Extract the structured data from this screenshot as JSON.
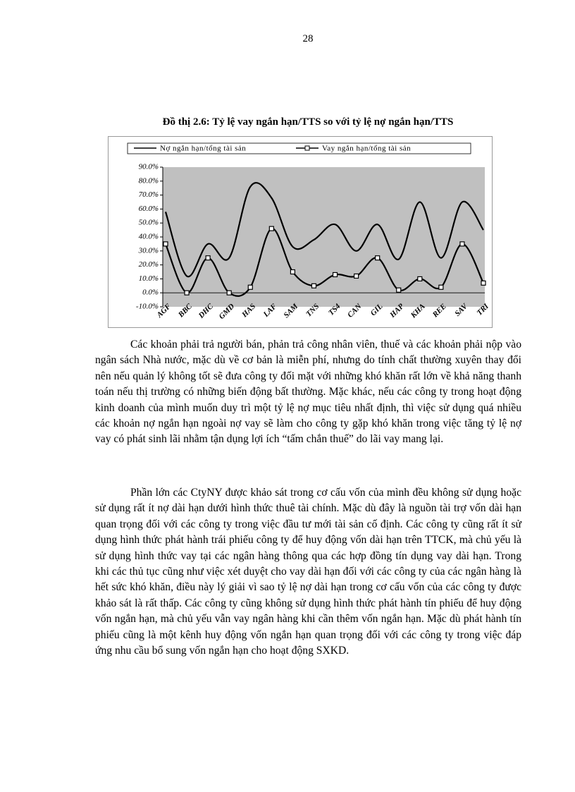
{
  "page_number": "28",
  "chart_data": {
    "type": "line",
    "title": "Đồ thị 2.6: Tỷ lệ vay ngắn hạn/TTS so với tỷ lệ nợ ngắn hạn/TTS",
    "categories": [
      "AGF",
      "BBC",
      "DHC",
      "GMD",
      "HAS",
      "LAF",
      "SAM",
      "TNS",
      "TS4",
      "CAN",
      "GIL",
      "HAP",
      "KHA",
      "REE",
      "SAV",
      "TRI"
    ],
    "series": [
      {
        "name": "Nợ ngắn hạn/tổng tài sản",
        "color": "#000000",
        "marker": false,
        "values": [
          58,
          12,
          35,
          25,
          76,
          68,
          33,
          38,
          49,
          30,
          49,
          24,
          65,
          25,
          65,
          45
        ]
      },
      {
        "name": "Vay ngắn hạn/tổng tài sản",
        "color": "#000000",
        "marker": true,
        "values": [
          35,
          0,
          25,
          0,
          4,
          46,
          15,
          5,
          13,
          12,
          25,
          2,
          10,
          4,
          35,
          7
        ]
      }
    ],
    "ylim": [
      -10,
      90
    ],
    "yticks": [
      {
        "value": -10,
        "label": "-10.0%"
      },
      {
        "value": 0,
        "label": "0.0%"
      },
      {
        "value": 10,
        "label": "10.0%"
      },
      {
        "value": 20,
        "label": "20.0%"
      },
      {
        "value": 30,
        "label": "30.0%"
      },
      {
        "value": 40,
        "label": "40.0%"
      },
      {
        "value": 50,
        "label": "50.0%"
      },
      {
        "value": 60,
        "label": "60.0%"
      },
      {
        "value": 70,
        "label": "70.0%"
      },
      {
        "value": 80,
        "label": "80.0%"
      },
      {
        "value": 90,
        "label": "90.0%"
      }
    ],
    "legend": "top",
    "background": "#c0c0c0"
  },
  "paragraphs": [
    "Các khoản phải trả người bán, phản trả công nhân viên, thuế và các khoản phải nộp vào ngân sách Nhà nước, mặc dù về cơ bản là miễn phí, nhưng do tính chất thường xuyên thay đổi nên nếu quản lý không tốt sẽ đưa công ty đối mặt với những khó khăn rất lớn về khả năng thanh toán nếu thị trường có những biến động bất thường. Mặc khác, nếu các công ty trong hoạt động kinh doanh của mình muốn duy trì một tỷ lệ nợ mục tiêu nhất định, thì việc sử dụng quá nhiều các khoản nợ ngắn hạn ngoài nợ vay sẽ làm cho công ty gặp khó khăn trong việc tăng tỷ lệ nợ vay có phát sinh lãi nhằm tận dụng lợi ích “tấm chắn thuế” do lãi vay mang lại.",
    "Phần lớn các CtyNY được khảo sát trong cơ cấu vốn của mình đều không sử dụng hoặc sử dụng rất ít nợ dài hạn dưới hình thức thuê tài chính. Mặc dù đây là nguồn tài trợ vốn dài hạn quan trọng đối với các công ty trong việc đầu tư mới tài sản cố định. Các công ty cũng rất ít sử dụng hình thức phát hành trái phiếu công ty để huy động vốn dài hạn trên TTCK, mà chủ yếu là sử dụng hình thức vay tại các ngân hàng thông qua các hợp đồng tín dụng vay dài hạn. Trong khi các thủ tục cũng như việc xét duyệt cho vay dài hạn đối với các công ty của các ngân hàng là hết sức khó khăn, điều này lý giải vì sao tỷ lệ nợ dài hạn trong cơ cấu vốn của các công ty được khảo sát là rất thấp. Các công ty cũng không sử dụng hình thức phát hành tín phiếu để huy động vốn ngắn hạn, mà chủ yếu vẫn vay ngân hàng khi cần thêm vốn ngắn hạn. Mặc dù phát hành tín phiếu cũng là một kênh huy động vốn ngắn hạn quan trọng đối với các công ty trong việc đáp ứng nhu cầu bổ sung vốn ngắn hạn cho hoạt động SXKD."
  ]
}
